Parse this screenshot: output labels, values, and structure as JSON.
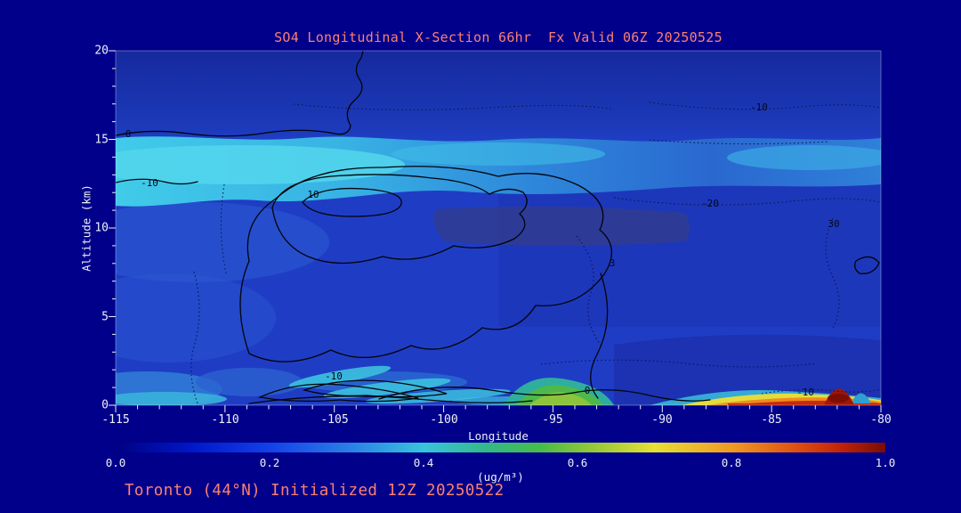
{
  "page": {
    "background_color": "#00008b",
    "accent_text_color": "#fa8072",
    "axis_text_color": "#eef0f8"
  },
  "chart_data": {
    "type": "heatmap",
    "title": "SO4 Longitudinal X-Section 66hr  Fx Valid 06Z 20250525",
    "xlabel": "Longitude",
    "ylabel": "Altitude (km)",
    "xlim": [
      -115,
      -80
    ],
    "ylim": [
      0,
      20
    ],
    "x_tick_labels": [
      "-115",
      "-110",
      "-105",
      "-100",
      "-95",
      "-90",
      "-85",
      "-80"
    ],
    "y_tick_labels": [
      "20",
      "15",
      "10",
      "5",
      "0"
    ],
    "annotations": [
      "Toronto (44°N) Initialized 12Z 20250522"
    ],
    "colorbar": {
      "units_label": "(ug/m³)",
      "min": 0.0,
      "max": 1.0,
      "tick_labels": [
        "0.0",
        "0.2",
        "0.4",
        "0.6",
        "0.8",
        "1.0"
      ],
      "gradient_stops": [
        {
          "offset": 0.0,
          "color": "#000082"
        },
        {
          "offset": 0.1,
          "color": "#0018c8"
        },
        {
          "offset": 0.2,
          "color": "#1440e8"
        },
        {
          "offset": 0.3,
          "color": "#2a7ce4"
        },
        {
          "offset": 0.4,
          "color": "#38c4dc"
        },
        {
          "offset": 0.48,
          "color": "#34b88a"
        },
        {
          "offset": 0.55,
          "color": "#46bc48"
        },
        {
          "offset": 0.62,
          "color": "#96c838"
        },
        {
          "offset": 0.7,
          "color": "#e6e034"
        },
        {
          "offset": 0.8,
          "color": "#f09a22"
        },
        {
          "offset": 0.88,
          "color": "#e05312"
        },
        {
          "offset": 0.94,
          "color": "#c22408"
        },
        {
          "offset": 1.0,
          "color": "#7a0c04"
        }
      ]
    },
    "grid": {
      "longitudes": [
        -115,
        -110,
        -105,
        -100,
        -95,
        -90,
        -85,
        -80
      ],
      "altitudes_km": [
        0,
        2,
        5,
        8,
        11,
        14,
        17,
        20
      ],
      "so4_ugm3": [
        [
          0.3,
          0.3,
          0.35,
          0.3,
          0.55,
          0.25,
          0.95,
          0.5
        ],
        [
          0.3,
          0.28,
          0.32,
          0.25,
          0.25,
          0.2,
          0.2,
          0.2
        ],
        [
          0.25,
          0.25,
          0.22,
          0.22,
          0.2,
          0.18,
          0.18,
          0.18
        ],
        [
          0.22,
          0.22,
          0.22,
          0.2,
          0.18,
          0.18,
          0.18,
          0.18
        ],
        [
          0.25,
          0.25,
          0.28,
          0.15,
          0.15,
          0.15,
          0.18,
          0.18
        ],
        [
          0.45,
          0.45,
          0.42,
          0.38,
          0.35,
          0.3,
          0.35,
          0.3
        ],
        [
          0.2,
          0.2,
          0.2,
          0.2,
          0.18,
          0.18,
          0.2,
          0.18
        ],
        [
          0.15,
          0.15,
          0.15,
          0.15,
          0.15,
          0.15,
          0.15,
          0.15
        ]
      ]
    },
    "features": [
      {
        "name": "upper-level SO4 band",
        "extent": "12-15 km across all longitudes",
        "value_ugm3": "0.30-0.45"
      },
      {
        "name": "surface maximum streak",
        "extent": "-88 to -80, below 1 km",
        "value_ugm3": "0.8-1.0"
      },
      {
        "name": "surface plume",
        "extent": "-96 to -93, below 1.5 km",
        "value_ugm3": "0.5-0.6"
      },
      {
        "name": "low-level filaments",
        "extent": "-109 to -101, below 2 km",
        "value_ugm3": "0.3-0.45"
      }
    ],
    "contour_labels": [
      {
        "text": "0",
        "lon": -114.4,
        "alt_km": 15.3,
        "style": "solid"
      },
      {
        "text": "-10",
        "lon": -113.4,
        "alt_km": 12.6,
        "style": "solid"
      },
      {
        "text": "10",
        "lon": -106.0,
        "alt_km": 11.9,
        "style": "solid"
      },
      {
        "text": "-10",
        "lon": -105.0,
        "alt_km": 1.7,
        "style": "solid"
      },
      {
        "text": "0",
        "lon": -93.4,
        "alt_km": 0.9,
        "style": "solid"
      },
      {
        "text": "-10",
        "lon": -83.5,
        "alt_km": 0.8,
        "style": "dotted"
      },
      {
        "text": "-10",
        "lon": -85.5,
        "alt_km": 16.4,
        "style": "dotted"
      },
      {
        "text": "-20",
        "lon": -87.7,
        "alt_km": 11.4,
        "style": "dotted"
      },
      {
        "text": "3",
        "lon": -92.2,
        "alt_km": 8.0,
        "style": "dotted"
      },
      {
        "text": "30",
        "lon": -82.2,
        "alt_km": 10.2,
        "style": "dotted"
      }
    ]
  }
}
